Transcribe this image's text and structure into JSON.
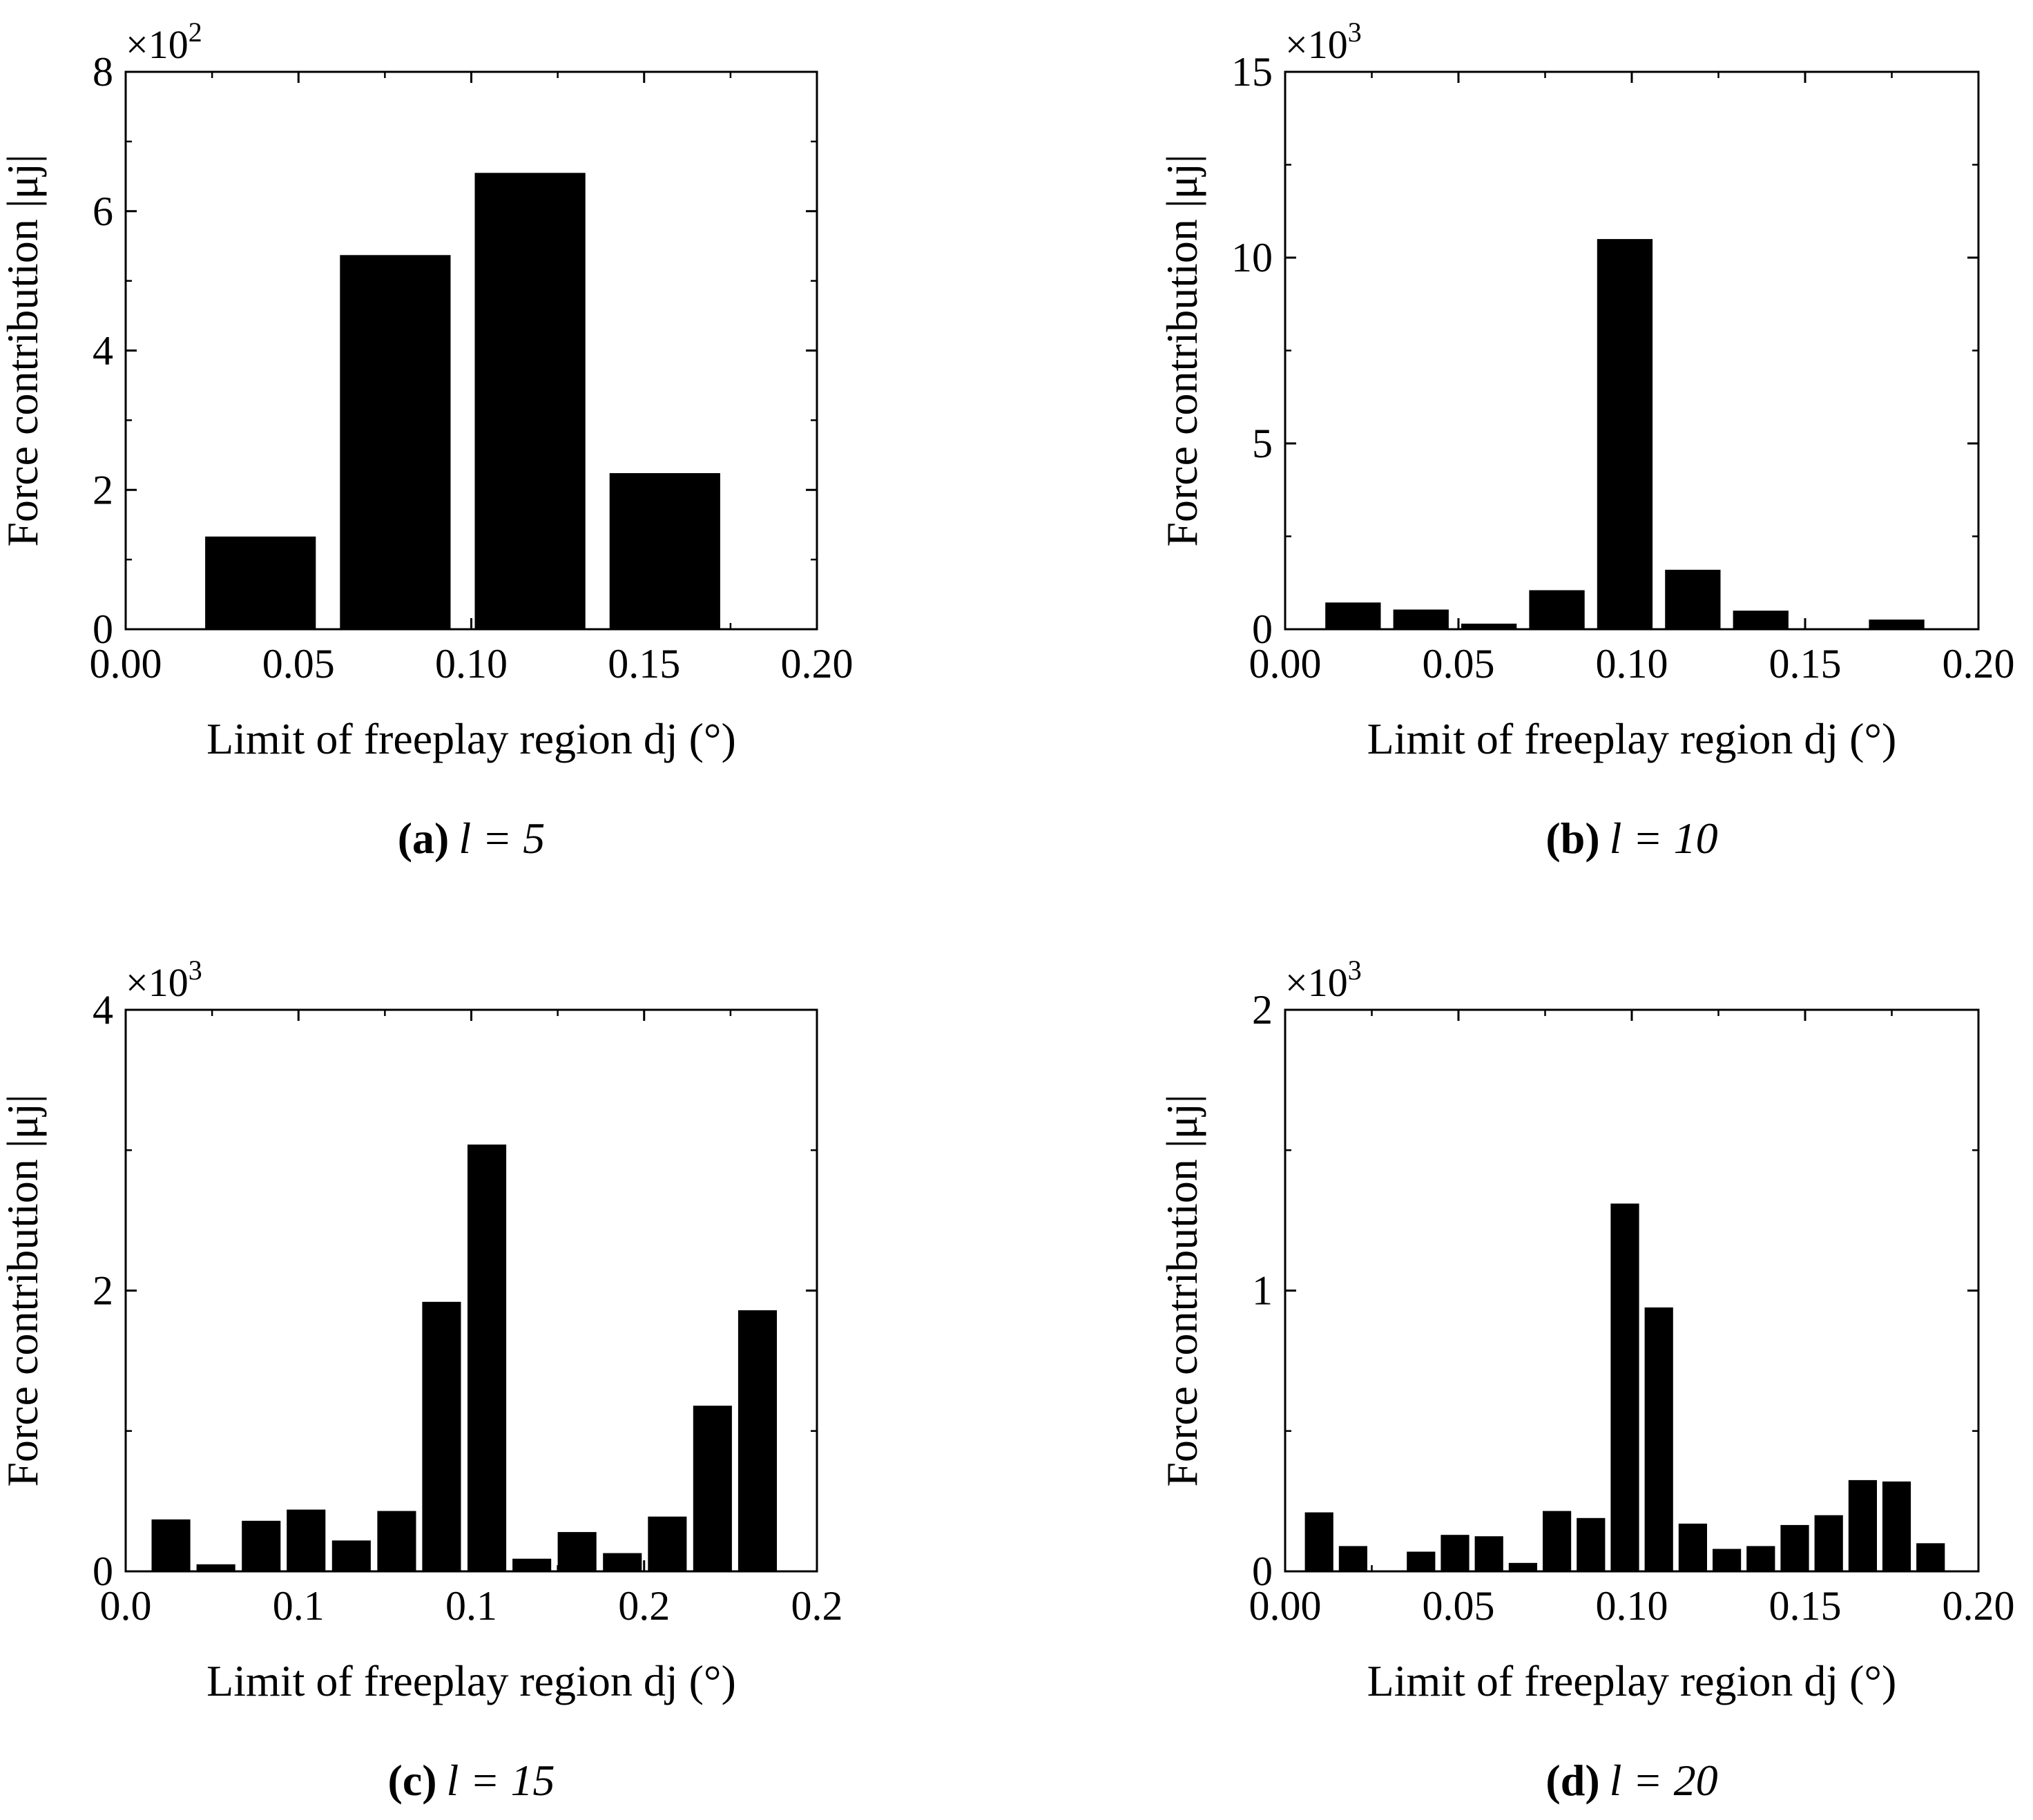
{
  "chart_data": [
    {
      "id": "a",
      "type": "bar",
      "caption_letter": "(a)",
      "caption_math": "l = 5",
      "ylabel": "Force contribution |μj|",
      "xlabel": "Limit of freeplay region dj (°)",
      "y_multiplier": "×10",
      "y_exponent": "2",
      "xlim": [
        0.0,
        0.2
      ],
      "ylim": [
        0,
        8
      ],
      "xticks": [
        0.0,
        0.05,
        0.1,
        0.15,
        0.2
      ],
      "xtick_labels": [
        "0.00",
        "0.05",
        "0.10",
        "0.15",
        "0.20"
      ],
      "yticks": [
        0,
        2,
        4,
        6,
        8
      ],
      "ytick_labels": [
        "0",
        "2",
        "4",
        "6",
        "8"
      ],
      "bar_width": 0.032,
      "x": [
        0.039,
        0.078,
        0.117,
        0.156
      ],
      "values": [
        1.33,
        5.37,
        6.55,
        2.24
      ]
    },
    {
      "id": "b",
      "type": "bar",
      "caption_letter": "(b)",
      "caption_math": "l = 10",
      "ylabel": "Force contribution |μj|",
      "xlabel": "Limit of freeplay region dj (°)",
      "y_multiplier": "×10",
      "y_exponent": "3",
      "xlim": [
        0.0,
        0.2
      ],
      "ylim": [
        0,
        15
      ],
      "xticks": [
        0.0,
        0.05,
        0.1,
        0.15,
        0.2
      ],
      "xtick_labels": [
        "0.00",
        "0.05",
        "0.10",
        "0.15",
        "0.20"
      ],
      "yticks": [
        0,
        5,
        10,
        15
      ],
      "ytick_labels": [
        "0",
        "5",
        "10",
        "15"
      ],
      "bar_width": 0.016,
      "x": [
        0.0196,
        0.0392,
        0.0588,
        0.0784,
        0.098,
        0.1176,
        0.1372,
        0.1568,
        0.1764
      ],
      "values": [
        0.72,
        0.53,
        0.15,
        1.05,
        10.5,
        1.6,
        0.5,
        0.0,
        0.26
      ]
    },
    {
      "id": "c",
      "type": "bar",
      "caption_letter": "(c)",
      "caption_math": "l = 15",
      "ylabel": "Force contribution |μj|",
      "xlabel": "Limit of freeplay region dj (°)",
      "y_multiplier": "×10",
      "y_exponent": "3",
      "xlim": [
        0.0,
        0.2
      ],
      "ylim": [
        0,
        4
      ],
      "xticks": [
        0.0,
        0.05,
        0.1,
        0.15,
        0.2
      ],
      "xtick_labels": [
        "0.0",
        "0.1",
        "0.1",
        "0.2",
        "0.2"
      ],
      "yticks": [
        0,
        2,
        4
      ],
      "ytick_labels": [
        "0",
        "2",
        "4"
      ],
      "bar_width": 0.0112,
      "x": [
        0.0131,
        0.0261,
        0.0392,
        0.0522,
        0.0653,
        0.0784,
        0.0914,
        0.1045,
        0.1175,
        0.1306,
        0.1437,
        0.1567,
        0.1698,
        0.1828,
        0.1959
      ],
      "values": [
        0.37,
        0.05,
        0.36,
        0.44,
        0.22,
        0.43,
        1.92,
        3.04,
        0.09,
        0.28,
        0.13,
        0.39,
        1.18,
        1.86,
        0.0
      ]
    },
    {
      "id": "d",
      "type": "bar",
      "caption_letter": "(d)",
      "caption_math": "l = 20",
      "ylabel": "Force contribution |μj|",
      "xlabel": "Limit of freeplay region dj (°)",
      "y_multiplier": "×10",
      "y_exponent": "3",
      "xlim": [
        0.0,
        0.2
      ],
      "ylim": [
        0,
        2
      ],
      "xticks": [
        0.0,
        0.05,
        0.1,
        0.15,
        0.2
      ],
      "xtick_labels": [
        "0.00",
        "0.05",
        "0.10",
        "0.15",
        "0.20"
      ],
      "yticks": [
        0,
        1,
        2
      ],
      "ytick_labels": [
        "0",
        "1",
        "2"
      ],
      "bar_width": 0.0082,
      "x": [
        0.0098,
        0.0196,
        0.0294,
        0.0392,
        0.049,
        0.0588,
        0.0686,
        0.0784,
        0.0882,
        0.098,
        0.1078,
        0.1176,
        0.1274,
        0.1372,
        0.147,
        0.1568,
        0.1666,
        0.1764,
        0.1862
      ],
      "values": [
        0.21,
        0.09,
        0.0,
        0.07,
        0.13,
        0.125,
        0.03,
        0.215,
        0.19,
        1.31,
        0.94,
        0.17,
        0.08,
        0.09,
        0.165,
        0.2,
        0.325,
        0.32,
        0.1
      ]
    }
  ]
}
